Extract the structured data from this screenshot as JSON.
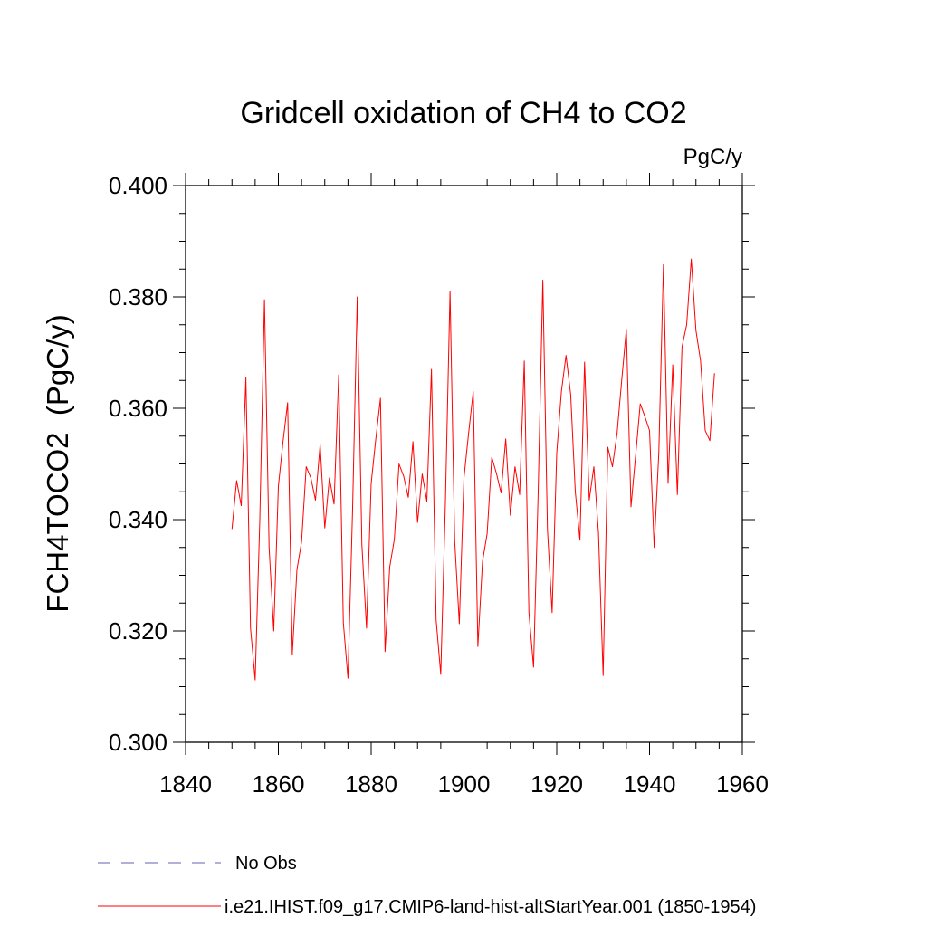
{
  "chart_data": {
    "type": "line",
    "title": "Gridcell oxidation of CH4 to CO2",
    "units_label": "PgC/y",
    "ylabel": "FCH4TOCO2  (PgC/y)",
    "xlabel": "",
    "xlim": [
      1840,
      1960
    ],
    "ylim": [
      0.3,
      0.4
    ],
    "x_ticks": [
      1840,
      1860,
      1880,
      1900,
      1920,
      1940,
      1960
    ],
    "x_tick_labels": [
      "1840",
      "1860",
      "1880",
      "1900",
      "1920",
      "1940",
      "1960"
    ],
    "y_ticks": [
      0.3,
      0.32,
      0.34,
      0.36,
      0.38,
      0.4
    ],
    "y_tick_labels": [
      "0.300",
      "0.320",
      "0.340",
      "0.360",
      "0.380",
      "0.400"
    ],
    "grid": false,
    "legend_position": "bottom-left",
    "series": [
      {
        "name": "No Obs",
        "color": "#8080c0",
        "style": "dashed",
        "x": [],
        "values": []
      },
      {
        "name": "i.e21.IHIST.f09_g17.CMIP6-land-hist-altStartYear.001 (1850-1954)",
        "color": "#ff0000",
        "style": "solid",
        "x": [
          1850,
          1851,
          1852,
          1853,
          1854,
          1855,
          1856,
          1857,
          1858,
          1859,
          1860,
          1861,
          1862,
          1863,
          1864,
          1865,
          1866,
          1867,
          1868,
          1869,
          1870,
          1871,
          1872,
          1873,
          1874,
          1875,
          1876,
          1877,
          1878,
          1879,
          1880,
          1881,
          1882,
          1883,
          1884,
          1885,
          1886,
          1887,
          1888,
          1889,
          1890,
          1891,
          1892,
          1893,
          1894,
          1895,
          1896,
          1897,
          1898,
          1899,
          1900,
          1901,
          1902,
          1903,
          1904,
          1905,
          1906,
          1907,
          1908,
          1909,
          1910,
          1911,
          1912,
          1913,
          1914,
          1915,
          1916,
          1917,
          1918,
          1919,
          1920,
          1921,
          1922,
          1923,
          1924,
          1925,
          1926,
          1927,
          1928,
          1929,
          1930,
          1931,
          1932,
          1933,
          1934,
          1935,
          1936,
          1937,
          1938,
          1939,
          1940,
          1941,
          1942,
          1943,
          1944,
          1945,
          1946,
          1947,
          1948,
          1949,
          1950,
          1951,
          1952,
          1953,
          1954
        ],
        "values": [
          0.3383,
          0.347,
          0.3425,
          0.3655,
          0.3205,
          0.3112,
          0.34,
          0.3795,
          0.335,
          0.32,
          0.346,
          0.354,
          0.361,
          0.3158,
          0.331,
          0.336,
          0.3495,
          0.3475,
          0.3435,
          0.3535,
          0.3385,
          0.3475,
          0.3428,
          0.366,
          0.3215,
          0.3115,
          0.342,
          0.38,
          0.3355,
          0.3205,
          0.3465,
          0.3545,
          0.3618,
          0.3163,
          0.3315,
          0.3365,
          0.35,
          0.3478,
          0.344,
          0.354,
          0.3395,
          0.3482,
          0.3433,
          0.367,
          0.322,
          0.3122,
          0.343,
          0.381,
          0.3363,
          0.3213,
          0.3475,
          0.3555,
          0.363,
          0.3172,
          0.3325,
          0.3375,
          0.3512,
          0.3483,
          0.3448,
          0.3545,
          0.3408,
          0.3495,
          0.3445,
          0.3685,
          0.3233,
          0.3135,
          0.345,
          0.383,
          0.3382,
          0.3233,
          0.352,
          0.363,
          0.3695,
          0.3625,
          0.345,
          0.3363,
          0.3683,
          0.3435,
          0.3495,
          0.3375,
          0.312,
          0.353,
          0.3495,
          0.3555,
          0.365,
          0.3742,
          0.3423,
          0.3515,
          0.3608,
          0.3585,
          0.356,
          0.335,
          0.352,
          0.3858,
          0.3465,
          0.3678,
          0.3445,
          0.371,
          0.375,
          0.3868,
          0.374,
          0.3685,
          0.356,
          0.3542,
          0.3663
        ]
      }
    ]
  }
}
